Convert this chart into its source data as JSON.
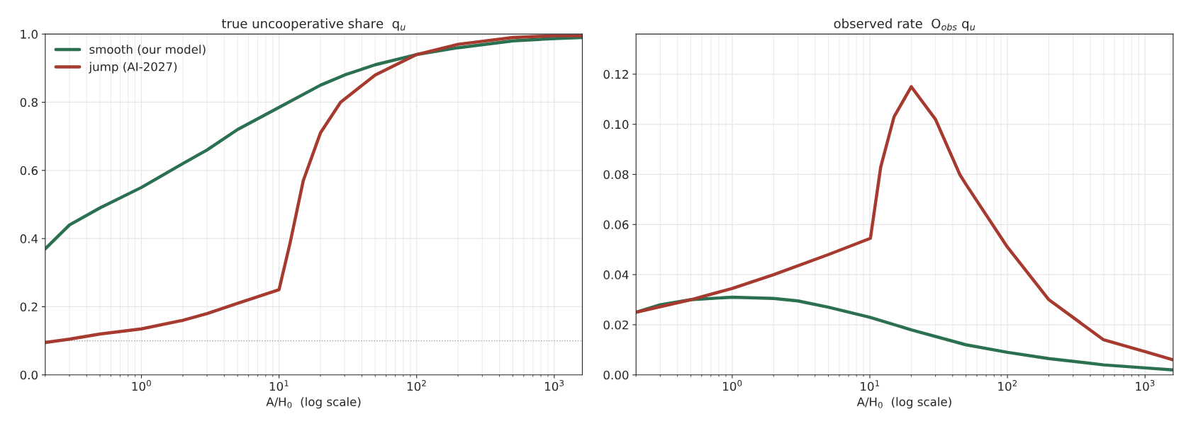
{
  "chart_data": [
    {
      "type": "line",
      "title": "true uncooperative share  q$_{u}$",
      "xlabel": "A/H$_{0}$  (log scale)",
      "log": "x",
      "xlim": [
        0.2,
        1600
      ],
      "xticks": [
        {
          "value": 1,
          "label": "10$^{0}$"
        },
        {
          "value": 10,
          "label": "10$^{1}$"
        },
        {
          "value": 100,
          "label": "10$^{2}$"
        },
        {
          "value": 1000,
          "label": "10$^{3}$"
        }
      ],
      "ylim": [
        0,
        1
      ],
      "yticks": [
        {
          "value": 0,
          "label": "0.0"
        },
        {
          "value": 0.2,
          "label": "0.2"
        },
        {
          "value": 0.4,
          "label": "0.4"
        },
        {
          "value": 0.6,
          "label": "0.6"
        },
        {
          "value": 0.8,
          "label": "0.8"
        },
        {
          "value": 1,
          "label": "1.0"
        }
      ],
      "grid": true,
      "legend": "top left",
      "line_style": "solid",
      "marker": "none",
      "series": [
        {
          "name": "smooth (our model)",
          "color": "#2b7050",
          "x": [
            0.2,
            0.3,
            0.5,
            1,
            2,
            3,
            5,
            10,
            20,
            30,
            50,
            100,
            200,
            500,
            1000,
            1600
          ],
          "values": [
            0.37,
            0.44,
            0.49,
            0.55,
            0.62,
            0.66,
            0.72,
            0.785,
            0.85,
            0.88,
            0.91,
            0.94,
            0.96,
            0.98,
            0.987,
            0.99
          ]
        },
        {
          "name": "jump (AI-2027)",
          "color": "#a63a2e",
          "x": [
            0.2,
            0.3,
            0.5,
            1,
            2,
            3,
            5,
            10,
            12,
            15,
            20,
            28,
            50,
            100,
            200,
            500,
            1000,
            1600
          ],
          "values": [
            0.095,
            0.105,
            0.12,
            0.135,
            0.16,
            0.18,
            0.21,
            0.25,
            0.385,
            0.57,
            0.71,
            0.8,
            0.88,
            0.94,
            0.97,
            0.99,
            0.995,
            0.995
          ]
        }
      ],
      "ref_lines": [
        {
          "axis": "y",
          "value": 0.1,
          "color": "#999999",
          "line_style": "dotted"
        }
      ]
    },
    {
      "type": "line",
      "title": "observed rate  O$_{obs}$ q$_{u}$",
      "xlabel": "A/H$_{0}$  (log scale)",
      "log": "x",
      "xlim": [
        0.2,
        1600
      ],
      "xticks": [
        {
          "value": 1,
          "label": "10$^{0}$"
        },
        {
          "value": 10,
          "label": "10$^{1}$"
        },
        {
          "value": 100,
          "label": "10$^{2}$"
        },
        {
          "value": 1000,
          "label": "10$^{3}$"
        }
      ],
      "ylim": [
        0,
        0.136
      ],
      "yticks": [
        {
          "value": 0,
          "label": "0.00"
        },
        {
          "value": 0.02,
          "label": "0.02"
        },
        {
          "value": 0.04,
          "label": "0.04"
        },
        {
          "value": 0.06,
          "label": "0.06"
        },
        {
          "value": 0.08,
          "label": "0.08"
        },
        {
          "value": 0.1,
          "label": "0.10"
        },
        {
          "value": 0.12,
          "label": "0.12"
        }
      ],
      "grid": true,
      "line_style": "solid",
      "marker": "none",
      "series": [
        {
          "color": "#2b7050",
          "x": [
            0.2,
            0.3,
            0.5,
            1,
            2,
            3,
            5,
            10,
            20,
            50,
            100,
            200,
            500,
            1000,
            1600
          ],
          "values": [
            0.025,
            0.028,
            0.03,
            0.031,
            0.0305,
            0.0295,
            0.027,
            0.023,
            0.018,
            0.012,
            0.009,
            0.0065,
            0.004,
            0.0028,
            0.002
          ]
        },
        {
          "color": "#a63a2e",
          "x": [
            0.2,
            0.5,
            1,
            2,
            5,
            10.1,
            12,
            15,
            20,
            30,
            45,
            50,
            100,
            200,
            500,
            1000,
            1600
          ],
          "values": [
            0.025,
            0.03,
            0.0345,
            0.04,
            0.048,
            0.0545,
            0.083,
            0.103,
            0.115,
            0.102,
            0.08,
            0.076,
            0.051,
            0.03,
            0.014,
            0.0093,
            0.006
          ]
        }
      ]
    }
  ]
}
